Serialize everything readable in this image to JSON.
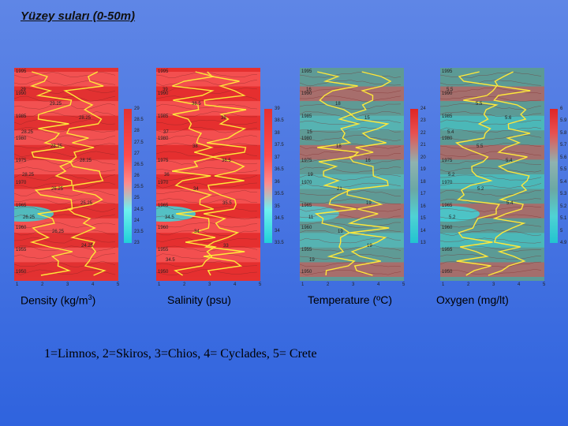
{
  "title": "Yüzey suları (0-50m)",
  "year_ticks": [
    "1995",
    "1990",
    "1985",
    "1980",
    "1975",
    "1970",
    "1965",
    "1960",
    "1955",
    "1950"
  ],
  "x_ticks": [
    "1",
    "2",
    "3",
    "4",
    "5"
  ],
  "panels": [
    {
      "caption_pre": "Density (kg/m",
      "caption_sup": "3",
      "caption_post": ")",
      "colorbar_ticks": [
        "29",
        "28.5",
        "28",
        "27.5",
        "27",
        "26.5",
        "26",
        "25.5",
        "25",
        "24.5",
        "24",
        "23.5",
        "23"
      ],
      "colors": {
        "main": "#e23232",
        "light": "#ff6b6b",
        "cold": "#38d4d6",
        "line": "#ffe83a"
      },
      "contour_labels": [
        "29",
        "29.25",
        "28.25",
        "28.25",
        "28.25",
        "28.25",
        "28.25",
        "26.25",
        "25.25",
        "26.25",
        "26.25",
        "24.25"
      ]
    },
    {
      "caption_pre": "Salinity (psu)",
      "caption_sup": "",
      "caption_post": "",
      "colorbar_ticks": [
        "39",
        "38.5",
        "38",
        "37.5",
        "37",
        "36.5",
        "36",
        "35.5",
        "35",
        "34.5",
        "34",
        "33.5"
      ],
      "colors": {
        "main": "#e53030",
        "light": "#ff6a6a",
        "cold": "#3bd9de",
        "line": "#ffe83a"
      },
      "contour_labels": [
        "39",
        "38.5",
        "38",
        "37",
        "38",
        "36.5",
        "36",
        "34",
        "35.5",
        "34.5",
        "34",
        "33",
        "34.5"
      ]
    },
    {
      "caption_pre": "Temperature (ºC)",
      "caption_sup": "",
      "caption_post": "",
      "colorbar_ticks": [
        "24",
        "23",
        "22",
        "21",
        "20",
        "19",
        "18",
        "17",
        "16",
        "15",
        "14",
        "13"
      ],
      "colors": {
        "main": "#5f9a96",
        "light": "#e24a4a",
        "cold": "#4fc9cb",
        "line": "#ffe83a"
      },
      "contour_labels": [
        "16",
        "18",
        "15",
        "15",
        "18",
        "16",
        "19",
        "21",
        "19",
        "11",
        "19",
        "19",
        "19"
      ]
    },
    {
      "caption_pre": "Oxygen (mg/lt)",
      "caption_sup": "",
      "caption_post": "",
      "colorbar_ticks": [
        "6",
        "5.9",
        "5.8",
        "5.7",
        "5.6",
        "5.5",
        "5.4",
        "5.3",
        "5.2",
        "5.1",
        "5",
        "4.9"
      ],
      "colors": {
        "main": "#5c9a96",
        "light": "#e04a4a",
        "cold": "#3ed2d6",
        "line": "#ffe83a"
      },
      "contour_labels": [
        "5.5",
        "5.5",
        "5.6",
        "5.4",
        "5.5",
        "5.4",
        "5.2",
        "5.2",
        "5.4",
        "5.2"
      ]
    }
  ],
  "legend": "1=Limnos, 2=Skiros, 3=Chios, 4= Cyclades, 5= Crete"
}
